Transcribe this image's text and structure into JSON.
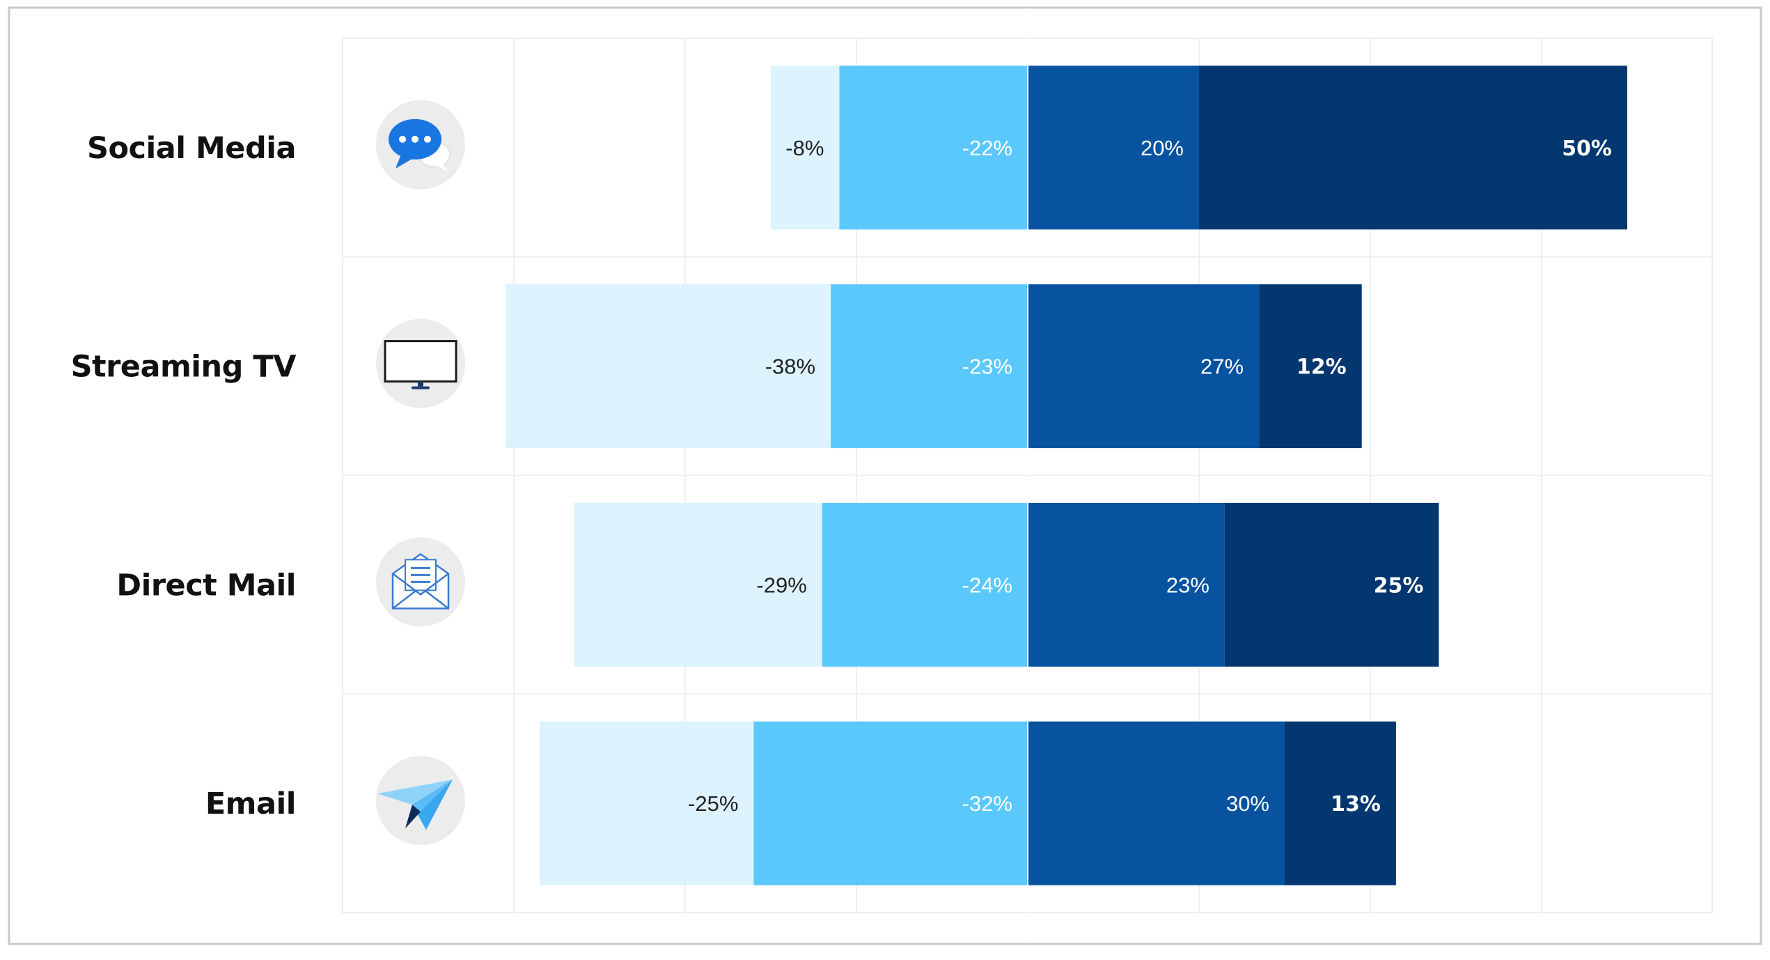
{
  "chart_data": {
    "type": "bar",
    "orientation": "horizontal",
    "stacked": true,
    "diverging": true,
    "xlim": [
      -60,
      80
    ],
    "grid": true,
    "categories": [
      {
        "name": "Social Media",
        "icon": "chat-bubble-icon"
      },
      {
        "name": "Streaming TV",
        "icon": "television-icon"
      },
      {
        "name": "Direct Mail",
        "icon": "envelope-icon"
      },
      {
        "name": "Email",
        "icon": "paper-plane-icon"
      }
    ],
    "series": [
      {
        "key": "neg_outer",
        "color": "#DDF3FD",
        "text_color": "#222222",
        "values": [
          -8,
          -38,
          -29,
          -25
        ],
        "labels": [
          "-8%",
          "-38%",
          "-29%",
          "-25%"
        ]
      },
      {
        "key": "neg_inner",
        "color": "#5BC8FC",
        "text_color": "#ffffff",
        "values": [
          -22,
          -23,
          -24,
          -32
        ],
        "labels": [
          "-22%",
          "-23%",
          "-24%",
          "-32%"
        ]
      },
      {
        "key": "pos_inner",
        "color": "#07539F",
        "text_color": "#ffffff",
        "values": [
          20,
          27,
          23,
          30
        ],
        "labels": [
          "20%",
          "27%",
          "23%",
          "30%"
        ]
      },
      {
        "key": "pos_outer",
        "color": "#04376F",
        "text_color": "#ffffff",
        "values": [
          50,
          12,
          25,
          13
        ],
        "labels": [
          "50%",
          "12%",
          "25%",
          "13%"
        ],
        "bold": true
      }
    ]
  }
}
